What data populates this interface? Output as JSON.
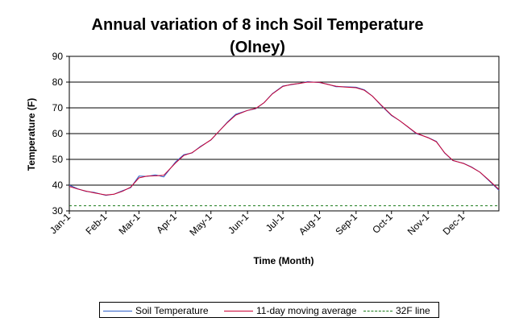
{
  "chart_data": {
    "type": "line",
    "title": "Annual variation of 8 inch Soil Temperature",
    "subtitle": "(Olney)",
    "xlabel": "Time (Month)",
    "ylabel": "Temperature (F)",
    "ylim": [
      30,
      90
    ],
    "yticks": [
      30,
      40,
      50,
      60,
      70,
      80,
      90
    ],
    "x_tick_labels": [
      "Jan-1",
      "Feb-1",
      "Mar-1",
      "Apr-1",
      "May-1",
      "Jun-1",
      "Jul-1",
      "Aug-1",
      "Sep-1",
      "Oct-1",
      "Nov-1",
      "Dec-1"
    ],
    "grid": "horizontal",
    "legend_position": "bottom",
    "series": [
      {
        "name": "Soil Temperature",
        "color": "#2d5fc9",
        "x": [
          "Jan-1",
          "Jan-8",
          "Jan-15",
          "Jan-22",
          "Feb-1",
          "Feb-8",
          "Feb-15",
          "Feb-22",
          "Mar-1",
          "Mar-8",
          "Mar-15",
          "Mar-22",
          "Apr-1",
          "Apr-8",
          "Apr-15",
          "Apr-22",
          "May-1",
          "May-8",
          "May-15",
          "May-22",
          "Jun-1",
          "Jun-8",
          "Jun-15",
          "Jun-22",
          "Jul-1",
          "Jul-8",
          "Jul-15",
          "Jul-22",
          "Aug-1",
          "Aug-8",
          "Aug-15",
          "Aug-22",
          "Sep-1",
          "Sep-8",
          "Sep-15",
          "Sep-22",
          "Oct-1",
          "Oct-8",
          "Oct-15",
          "Oct-22",
          "Nov-1",
          "Nov-8",
          "Nov-15",
          "Nov-22",
          "Dec-1",
          "Dec-8",
          "Dec-15",
          "Dec-22",
          "Dec-31"
        ],
        "values": [
          40,
          38.6,
          37.6,
          37.2,
          36,
          36.5,
          37.8,
          39,
          43.5,
          43.4,
          44,
          43.2,
          49,
          51.8,
          52.5,
          55,
          57.5,
          61,
          64.5,
          67.5,
          69,
          69.7,
          72,
          75.5,
          78.5,
          79,
          79.5,
          80.2,
          79.8,
          79.2,
          78.2,
          78.2,
          78,
          77,
          74.5,
          71,
          67,
          65,
          62.5,
          60,
          58.5,
          57,
          52.5,
          49.5,
          48.5,
          47,
          45,
          42,
          38
        ]
      },
      {
        "name": "11-day moving average",
        "color": "#cc0033",
        "x": [
          "Jan-1",
          "Jan-8",
          "Jan-15",
          "Jan-22",
          "Feb-1",
          "Feb-8",
          "Feb-15",
          "Feb-22",
          "Mar-1",
          "Mar-8",
          "Mar-15",
          "Mar-22",
          "Apr-1",
          "Apr-8",
          "Apr-15",
          "Apr-22",
          "May-1",
          "May-8",
          "May-15",
          "May-22",
          "Jun-1",
          "Jun-8",
          "Jun-15",
          "Jun-22",
          "Jul-1",
          "Jul-8",
          "Jul-15",
          "Jul-22",
          "Aug-1",
          "Aug-8",
          "Aug-15",
          "Aug-22",
          "Sep-1",
          "Sep-8",
          "Sep-15",
          "Sep-22",
          "Oct-1",
          "Oct-8",
          "Oct-15",
          "Oct-22",
          "Nov-1",
          "Nov-8",
          "Nov-15",
          "Nov-22",
          "Dec-1",
          "Dec-8",
          "Dec-15",
          "Dec-22",
          "Dec-31"
        ],
        "values": [
          39.5,
          38.5,
          37.7,
          37,
          36.2,
          36.5,
          37.6,
          39.2,
          42.8,
          43.5,
          43.6,
          43.8,
          48.6,
          51.5,
          52.6,
          54.8,
          57.6,
          61,
          64.3,
          67.2,
          69,
          69.8,
          72,
          75.4,
          78.3,
          79.1,
          79.5,
          80,
          79.9,
          79.1,
          78.4,
          78.1,
          77.8,
          76.8,
          74.5,
          71.2,
          67.2,
          65,
          62.6,
          60.2,
          58.4,
          56.8,
          52.6,
          49.6,
          48.4,
          46.9,
          45,
          42.2,
          38.3
        ]
      },
      {
        "name": "32F line",
        "color": "#1a7a1a",
        "x": [
          "Jan-1",
          "Dec-31"
        ],
        "values": [
          32,
          32
        ]
      }
    ]
  }
}
